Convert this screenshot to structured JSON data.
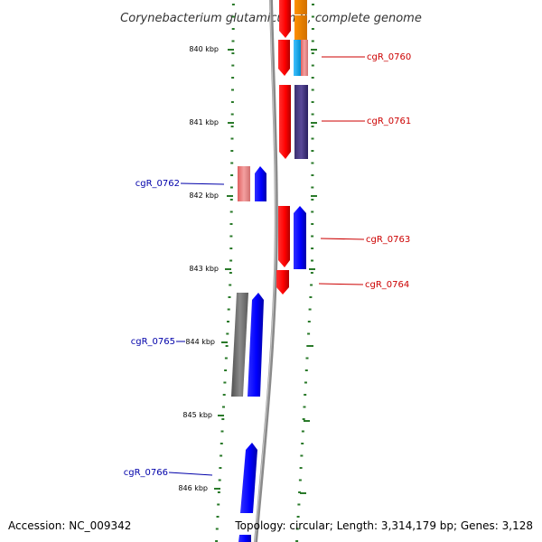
{
  "title_prefix": "Corynebacterium glutamicum",
  "title_suffix": " R, complete genome",
  "accession": "Accession: NC_009342",
  "topology": "Topology: circular; Length: 3,314,179 bp; Genes: 3,128",
  "colors": {
    "forward_label": "#0000aa",
    "reverse_label": "#cc0000",
    "tick": "#2a7a2a",
    "backbone": "#8a8a8a"
  },
  "kbp_ticks": [
    "840 kbp",
    "841 kbp",
    "842 kbp",
    "843 kbp",
    "844 kbp",
    "845 kbp",
    "846 kbp"
  ],
  "genes": [
    {
      "label": "cgR_0760",
      "strand": "reverse"
    },
    {
      "label": "cgR_0761",
      "strand": "reverse"
    },
    {
      "label": "cgR_0762",
      "strand": "forward"
    },
    {
      "label": "cgR_0763",
      "strand": "reverse"
    },
    {
      "label": "cgR_0764",
      "strand": "reverse"
    },
    {
      "label": "cgR_0765",
      "strand": "forward"
    },
    {
      "label": "cgR_0766",
      "strand": "forward"
    }
  ]
}
